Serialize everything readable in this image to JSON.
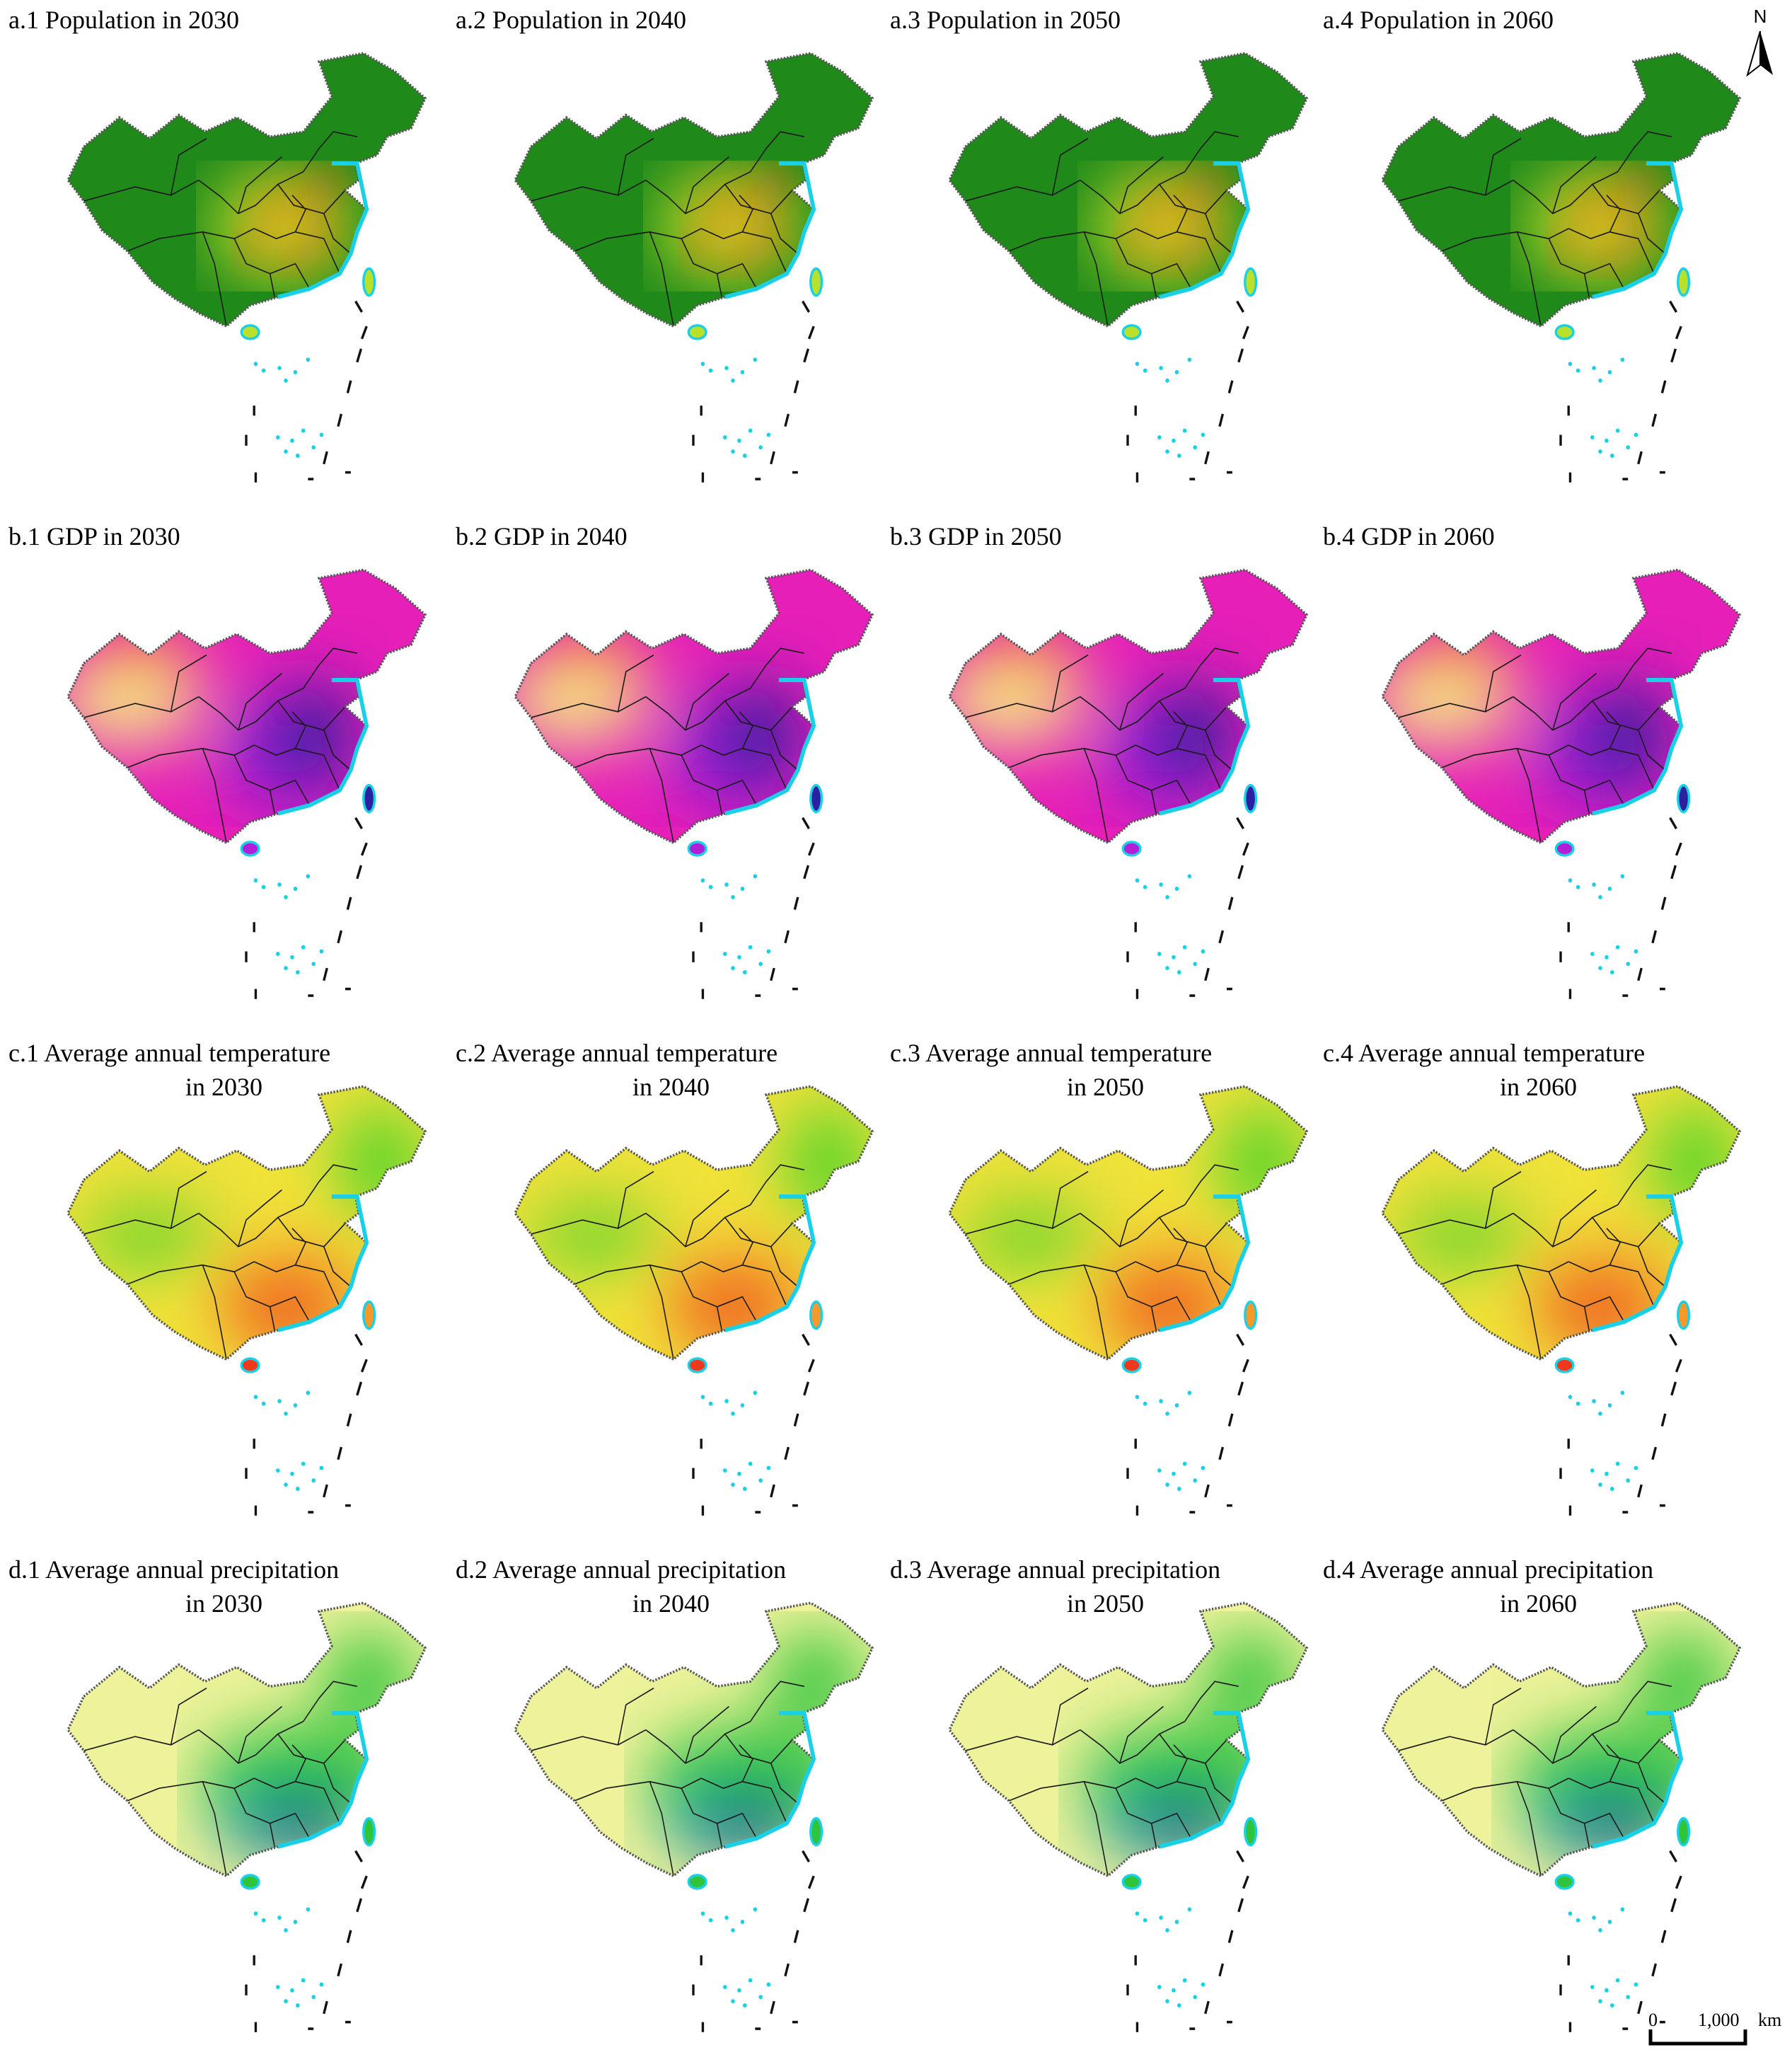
{
  "panels": [
    {
      "title": "a.1  Population in 2030",
      "palette": "population"
    },
    {
      "title": "a.2  Population in 2040",
      "palette": "population"
    },
    {
      "title": "a.3  Population in 2050",
      "palette": "population"
    },
    {
      "title": "a.4  Population in 2060",
      "palette": "population"
    },
    {
      "title": "b.1 GDP in 2030",
      "palette": "gdp"
    },
    {
      "title": "b.2 GDP in 2040",
      "palette": "gdp"
    },
    {
      "title": "b.3 GDP in 2050",
      "palette": "gdp"
    },
    {
      "title": "b.4 GDP in 2060",
      "palette": "gdp"
    },
    {
      "title": "c.1 Average annual temperature",
      "subtitle": "in 2030",
      "palette": "temperature"
    },
    {
      "title": "c.2 Average annual temperature",
      "subtitle": "in 2040",
      "palette": "temperature"
    },
    {
      "title": "c.3 Average annual temperature",
      "subtitle": "in 2050",
      "palette": "temperature"
    },
    {
      "title": "c.4 Average annual temperature",
      "subtitle": "in 2060",
      "palette": "temperature"
    },
    {
      "title": "d.1 Average annual precipitation",
      "subtitle": "in 2030",
      "palette": "precipitation"
    },
    {
      "title": "d.2 Average annual precipitation",
      "subtitle": "in 2040",
      "palette": "precipitation"
    },
    {
      "title": "d.3 Average annual precipitation",
      "subtitle": "in 2050",
      "palette": "precipitation"
    },
    {
      "title": "d.4 Average annual precipitation",
      "subtitle": "in 2060",
      "palette": "precipitation"
    }
  ],
  "palettes": {
    "population": {
      "base": "#1f8a1a",
      "mid": "#b9e02a",
      "hot": "#e8401c",
      "accent": "#f2c21b"
    },
    "gdp": {
      "base": "#e51fb8",
      "mid": "#8a1fd6",
      "hot": "#1c1f9a",
      "accent": "#f5e98a"
    },
    "temperature": {
      "base": "#f0e23a",
      "mid": "#54d42a",
      "hot": "#ee3a1a",
      "accent": "#f59a2a"
    },
    "precipitation": {
      "base": "#eef29a",
      "mid": "#2fc43a",
      "hot": "#14307c",
      "accent": "#1a9ab0"
    }
  },
  "coast_color": "#1ad0e6",
  "north_arrow": {
    "label": "N"
  },
  "scale_bar": {
    "start": "0",
    "value": "1,000",
    "unit": "km"
  }
}
